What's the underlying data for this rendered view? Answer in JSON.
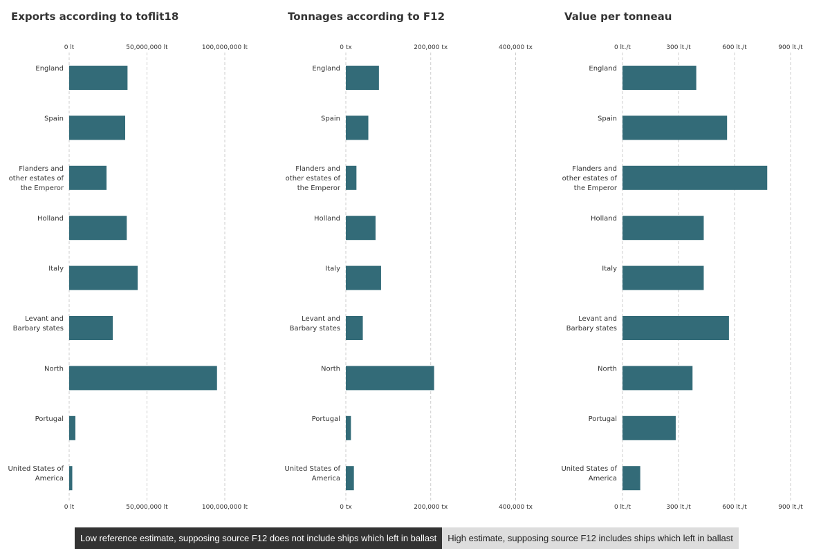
{
  "chart_data": [
    {
      "type": "bar",
      "orientation": "horizontal",
      "title": "Exports according to toflit18",
      "categories": [
        "England",
        "Spain",
        "Flanders and other estates of the Emperor",
        "Holland",
        "Italy",
        "Levant and Barbary states",
        "North",
        "Portugal",
        "United States of America"
      ],
      "category_lines": [
        [
          "England"
        ],
        [
          "Spain"
        ],
        [
          "Flanders and",
          "other estates of",
          "the Emperor"
        ],
        [
          "Holland"
        ],
        [
          "Italy"
        ],
        [
          "Levant and",
          "Barbary states"
        ],
        [
          "North"
        ],
        [
          "Portugal"
        ],
        [
          "United States of",
          "America"
        ]
      ],
      "values": [
        37500000,
        36000000,
        24000000,
        37000000,
        44000000,
        28000000,
        95000000,
        4000000,
        2000000
      ],
      "xlim": [
        0,
        120000000
      ],
      "ticks": [
        0,
        50000000,
        100000000
      ],
      "tick_labels": [
        "0 lt",
        "50,000,000 lt",
        "100,000,000 lt"
      ],
      "bar_color": "#336b78",
      "grid": true
    },
    {
      "type": "bar",
      "orientation": "horizontal",
      "title": "Tonnages according to F12",
      "categories": [
        "England",
        "Spain",
        "Flanders and other estates of the Emperor",
        "Holland",
        "Italy",
        "Levant and Barbary states",
        "North",
        "Portugal",
        "United States of America"
      ],
      "category_lines": [
        [
          "England"
        ],
        [
          "Spain"
        ],
        [
          "Flanders and",
          "other estates of",
          "the Emperor"
        ],
        [
          "Holland"
        ],
        [
          "Italy"
        ],
        [
          "Levant and",
          "Barbary states"
        ],
        [
          "North"
        ],
        [
          "Portugal"
        ],
        [
          "United States of",
          "America"
        ]
      ],
      "values": [
        78000,
        53000,
        25000,
        70000,
        83000,
        40000,
        208000,
        12000,
        19000
      ],
      "xlim": [
        0,
        440000
      ],
      "ticks": [
        0,
        200000,
        400000
      ],
      "tick_labels": [
        "0 tx",
        "200,000 tx",
        "400,000 tx"
      ],
      "bar_color": "#336b78",
      "grid": true
    },
    {
      "type": "bar",
      "orientation": "horizontal",
      "title": "Value per tonneau",
      "categories": [
        "England",
        "Spain",
        "Flanders and other estates of the Emperor",
        "Holland",
        "Italy",
        "Levant and Barbary states",
        "North",
        "Portugal",
        "United States of America"
      ],
      "category_lines": [
        [
          "England"
        ],
        [
          "Spain"
        ],
        [
          "Flanders and",
          "other estates of",
          "the Emperor"
        ],
        [
          "Holland"
        ],
        [
          "Italy"
        ],
        [
          "Levant and",
          "Barbary states"
        ],
        [
          "North"
        ],
        [
          "Portugal"
        ],
        [
          "United States of",
          "America"
        ]
      ],
      "values": [
        395,
        560,
        775,
        435,
        435,
        570,
        375,
        285,
        95
      ],
      "xlim": [
        0,
        1000
      ],
      "ticks": [
        0,
        300,
        600,
        900
      ],
      "tick_labels": [
        "0 lt./t",
        "300 lt./t",
        "600 lt./t",
        "900 lt./t"
      ],
      "bar_color": "#336b78",
      "grid": true
    }
  ],
  "toggle": {
    "low_label": "Low reference estimate, supposing source F12 does not include ships which left in ballast",
    "high_label": "High estimate, supposing source F12 includes ships which left in ballast",
    "active": "low"
  }
}
